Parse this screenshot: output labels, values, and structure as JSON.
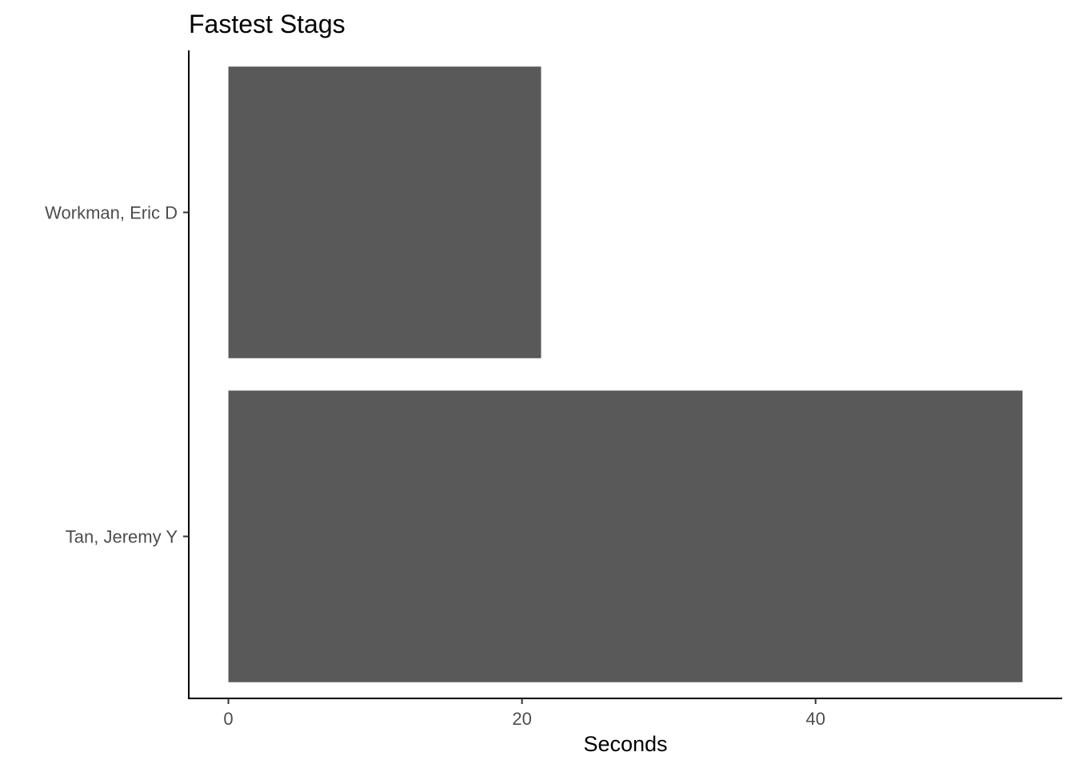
{
  "chart_data": {
    "type": "bar",
    "orientation": "horizontal",
    "title": "Fastest Stags",
    "xlabel": "Seconds",
    "ylabel": "",
    "categories": [
      "Workman, Eric D",
      "Tan, Jeremy Y"
    ],
    "values": [
      21.3,
      54.1
    ],
    "xlim": [
      -2.7,
      56.8
    ],
    "xticks": [
      0,
      20,
      40
    ],
    "xtick_labels": [
      "0",
      "20",
      "40"
    ],
    "bar_color": "#595959",
    "grid": false,
    "legend": "none"
  }
}
